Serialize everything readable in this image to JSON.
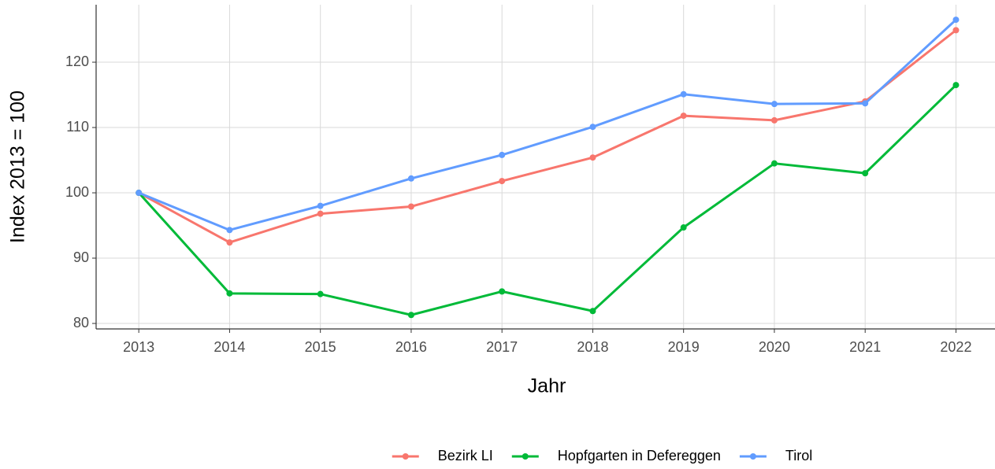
{
  "chart_data": {
    "type": "line",
    "x_label": "Jahr",
    "y_label": "Index  2013  = 100",
    "x": [
      2013,
      2014,
      2015,
      2016,
      2017,
      2018,
      2019,
      2020,
      2021,
      2022
    ],
    "series": [
      {
        "name": "Bezirk LI",
        "color": "#F8766D",
        "values": [
          100,
          92.4,
          96.8,
          97.9,
          101.8,
          105.4,
          111.8,
          111.1,
          114,
          124.9
        ]
      },
      {
        "name": "Hopfgarten in Defereggen",
        "color": "#00BA38",
        "values": [
          100,
          84.6,
          84.5,
          81.3,
          84.9,
          81.9,
          94.7,
          104.5,
          103,
          116.5
        ]
      },
      {
        "name": "Tirol",
        "color": "#619CFF",
        "values": [
          100,
          94.3,
          98,
          102.2,
          105.8,
          110.1,
          115.1,
          113.6,
          113.7,
          126.5
        ]
      }
    ],
    "xlim": [
      2012.53,
      2022.43
    ],
    "ylim": [
      79.16,
      128.8
    ],
    "xticks": [
      2013,
      2014,
      2015,
      2016,
      2017,
      2018,
      2019,
      2020,
      2021,
      2022
    ],
    "yticks": [
      80,
      90,
      100,
      110,
      120
    ],
    "grid": true,
    "legend": "bottom"
  }
}
